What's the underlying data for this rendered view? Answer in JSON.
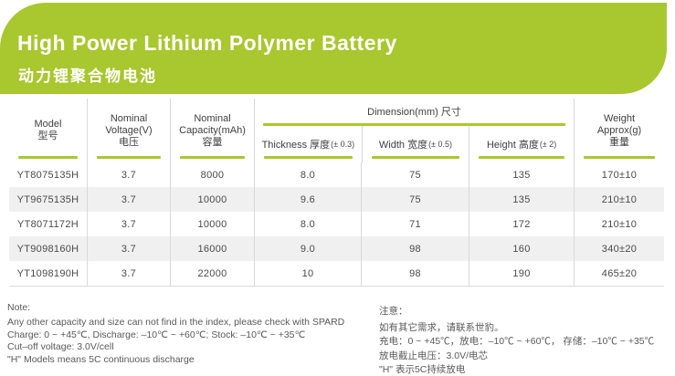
{
  "colors": {
    "accent_green": "#a9c72e",
    "row_shade": "#f0f0f0",
    "divider_gray": "#d9d9d9"
  },
  "banner": {
    "title": "High Power Lithium Polymer Battery",
    "subtitle": "动力锂聚合物电池"
  },
  "table": {
    "head": {
      "model": [
        "Model",
        "型号"
      ],
      "voltage": [
        "Nominal",
        "Voltage(V)",
        "电压"
      ],
      "capacity": [
        "Nominal",
        "Capacity(mAh)",
        "容量"
      ],
      "dimension": "Dimension(mm) 尺寸",
      "thickness": {
        "label": "Thickness 厚度",
        "tol": "(± 0.3)"
      },
      "width": {
        "label": "Width 宽度",
        "tol": "(± 0.5)"
      },
      "height": {
        "label": "Height 高度",
        "tol": "(± 2)"
      },
      "weight": [
        "Weight",
        "Approx(g)",
        "重量"
      ]
    },
    "rows": [
      {
        "model": "YT8075135H",
        "voltage": "3.7",
        "capacity": "8000",
        "thickness": "8.0",
        "width": "75",
        "height": "135",
        "weight": "170±10"
      },
      {
        "model": "YT9675135H",
        "voltage": "3.7",
        "capacity": "10000",
        "thickness": "9.6",
        "width": "75",
        "height": "135",
        "weight": "210±10"
      },
      {
        "model": "YT8071172H",
        "voltage": "3.7",
        "capacity": "10000",
        "thickness": "8.0",
        "width": "71",
        "height": "172",
        "weight": "210±10"
      },
      {
        "model": "YT9098160H",
        "voltage": "3.7",
        "capacity": "16000",
        "thickness": "9.0",
        "width": "98",
        "height": "160",
        "weight": "340±20"
      },
      {
        "model": "YT1098190H",
        "voltage": "3.7",
        "capacity": "22000",
        "thickness": "10",
        "width": "98",
        "height": "190",
        "weight": "465±20"
      }
    ]
  },
  "notes_en": {
    "title": "Note:",
    "lines": [
      "Any other capacity and size can not find in the index, please check with SPARD",
      "Charge: 0 ~ +45℃, Discharge: –10℃ ~ +60℃; Stock: –10℃ ~ +35℃",
      "Cut–off voltage: 3.0V/cell",
      "\"H\" Models means 5C continuous discharge"
    ]
  },
  "notes_zh": {
    "title": "注意：",
    "lines": [
      "如有其它需求，请联系世豹。",
      "充电：0 ~ +45℃，放电：–10℃ ~ +60℃， 存储：–10℃ ~ +35℃",
      "放电截止电压：3.0V/电芯",
      "\"H\" 表示5C持续放电"
    ]
  }
}
